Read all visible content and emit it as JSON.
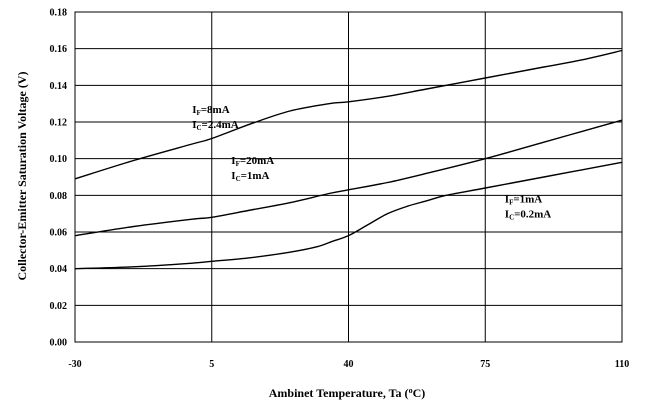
{
  "chart_data": {
    "type": "line",
    "xlabel": "Ambinet Temperature, Ta (",
    "xlabel_sup": "o",
    "xlabel_end": "C)",
    "ylabel": "Collector-Emitter Saturation Voltage (V)",
    "x_tick_labels": [
      "-30",
      "5",
      "40",
      "75",
      "110"
    ],
    "x": [
      -30,
      5,
      40,
      75,
      110
    ],
    "xlim": [
      -30,
      110
    ],
    "y_ticks": [
      0.0,
      0.02,
      0.04,
      0.06,
      0.08,
      0.1,
      0.12,
      0.14,
      0.16,
      0.18
    ],
    "y_tick_labels": [
      "0.00",
      "0.02",
      "0.04",
      "0.06",
      "0.08",
      "0.10",
      "0.12",
      "0.14",
      "0.16",
      "0.18"
    ],
    "ylim": [
      0,
      0.18
    ],
    "grid": true,
    "series": [
      {
        "points": [
          [
            -30,
            0.089
          ],
          [
            -15,
            0.099
          ],
          [
            0,
            0.108
          ],
          [
            5,
            0.111
          ],
          [
            15,
            0.119
          ],
          [
            25,
            0.126
          ],
          [
            35,
            0.13
          ],
          [
            40,
            0.131
          ],
          [
            50,
            0.134
          ],
          [
            60,
            0.138
          ],
          [
            75,
            0.144
          ],
          [
            90,
            0.15
          ],
          [
            100,
            0.154
          ],
          [
            110,
            0.159
          ]
        ],
        "labels": [
          {
            "main": "I",
            "sub": "F",
            "rest": "=8mA"
          },
          {
            "main": "I",
            "sub": "C",
            "rest": "=2.4mA"
          }
        ]
      },
      {
        "points": [
          [
            -30,
            0.058
          ],
          [
            -15,
            0.063
          ],
          [
            0,
            0.067
          ],
          [
            5,
            0.068
          ],
          [
            15,
            0.072
          ],
          [
            25,
            0.076
          ],
          [
            35,
            0.081
          ],
          [
            40,
            0.083
          ],
          [
            50,
            0.087
          ],
          [
            60,
            0.092
          ],
          [
            75,
            0.1
          ],
          [
            90,
            0.109
          ],
          [
            100,
            0.115
          ],
          [
            110,
            0.121
          ]
        ],
        "labels": [
          {
            "main": "I",
            "sub": "F",
            "rest": "=20mA"
          },
          {
            "main": "I",
            "sub": "C",
            "rest": "=1mA"
          }
        ]
      },
      {
        "points": [
          [
            -30,
            0.04
          ],
          [
            -15,
            0.041
          ],
          [
            0,
            0.043
          ],
          [
            5,
            0.044
          ],
          [
            15,
            0.046
          ],
          [
            25,
            0.049
          ],
          [
            32,
            0.052
          ],
          [
            36,
            0.055
          ],
          [
            40,
            0.058
          ],
          [
            45,
            0.064
          ],
          [
            50,
            0.07
          ],
          [
            55,
            0.074
          ],
          [
            60,
            0.077
          ],
          [
            65,
            0.08
          ],
          [
            75,
            0.084
          ],
          [
            90,
            0.09
          ],
          [
            100,
            0.094
          ],
          [
            110,
            0.098
          ]
        ],
        "labels": [
          {
            "main": "I",
            "sub": "F",
            "rest": "=1mA"
          },
          {
            "main": "I",
            "sub": "C",
            "rest": "=0.2mA"
          }
        ]
      }
    ]
  }
}
